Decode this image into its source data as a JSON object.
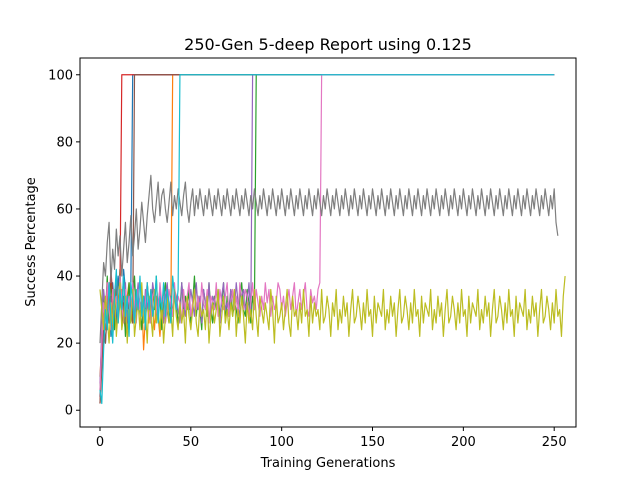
{
  "chart_data": {
    "type": "line",
    "title": "250-Gen 5-deep Report using 0.125",
    "xlabel": "Training Generations",
    "ylabel": "Success Percentage",
    "xlim": [
      -11,
      262
    ],
    "ylim": [
      -5,
      105
    ],
    "xticks": [
      0,
      50,
      100,
      150,
      200,
      250
    ],
    "yticks": [
      0,
      20,
      40,
      60,
      80,
      100
    ],
    "grid": false,
    "legend": "none",
    "series": [
      {
        "color": "#1f77b4",
        "values": [
          4,
          18,
          26,
          20,
          30,
          34,
          22,
          38,
          30,
          26,
          40,
          34,
          28,
          42,
          36,
          30,
          24,
          38,
          100
        ]
      },
      {
        "color": "#ff7f0e",
        "values": [
          10,
          20,
          30,
          24,
          34,
          28,
          36,
          22,
          30,
          40,
          26,
          32,
          36,
          28,
          24,
          34,
          38,
          30,
          26,
          32,
          28,
          36,
          30,
          34,
          18,
          28,
          32,
          26,
          36,
          30,
          24,
          34,
          28,
          22,
          30,
          36,
          26,
          32,
          28,
          30,
          100
        ]
      },
      {
        "color": "#2ca02c",
        "values": [
          6,
          22,
          34,
          28,
          40,
          26,
          38,
          32,
          24,
          36,
          30,
          42,
          28,
          34,
          22,
          30,
          38,
          26,
          32,
          40,
          28,
          36,
          30,
          24,
          34,
          28,
          38,
          32,
          26,
          36,
          30,
          40,
          28,
          34,
          24,
          32,
          38,
          30,
          26,
          34,
          28,
          36,
          32,
          26,
          30,
          38,
          28,
          34,
          30,
          36,
          26,
          32,
          40,
          28,
          34,
          30,
          24,
          36,
          32,
          28,
          38,
          30,
          26,
          34,
          30,
          36,
          28,
          32,
          38,
          26,
          34,
          30,
          36,
          28,
          32,
          30,
          26,
          34,
          38,
          30,
          28,
          36,
          32,
          26,
          34,
          30,
          100
        ]
      },
      {
        "color": "#d62728",
        "values": [
          2,
          16,
          30,
          26,
          38,
          30,
          42,
          34,
          28,
          40,
          32,
          36,
          100
        ]
      },
      {
        "color": "#9467bd",
        "values": [
          8,
          24,
          36,
          30,
          28,
          38,
          32,
          26,
          34,
          40,
          30,
          36,
          28,
          32,
          38,
          26,
          34,
          30,
          36,
          28,
          32,
          38,
          30,
          34,
          26,
          36,
          32,
          28,
          30,
          38,
          34,
          28,
          32,
          36,
          30,
          26,
          34,
          38,
          30,
          32,
          28,
          36,
          34,
          30,
          26,
          38,
          32,
          28,
          34,
          30,
          36,
          32,
          28,
          38,
          30,
          34,
          26,
          36,
          32,
          30,
          38,
          28,
          34,
          32,
          36,
          30,
          26,
          34,
          38,
          30,
          32,
          28,
          36,
          34,
          30,
          38,
          32,
          28,
          34,
          36,
          30,
          32,
          38,
          28,
          100
        ]
      },
      {
        "color": "#8c564b",
        "values": [
          2,
          12,
          24,
          20,
          30,
          26,
          34,
          28,
          32,
          24,
          30,
          36,
          26,
          32,
          28,
          22,
          34,
          30,
          26,
          100
        ]
      },
      {
        "color": "#e377c2",
        "values": [
          6,
          20,
          32,
          26,
          38,
          30,
          24,
          36,
          30,
          34,
          28,
          40,
          32,
          26,
          36,
          30,
          34,
          28,
          38,
          32,
          26,
          36,
          30,
          34,
          28,
          32,
          38,
          30,
          26,
          34,
          36,
          30,
          28,
          38,
          32,
          34,
          26,
          30,
          36,
          32,
          28,
          38,
          30,
          34,
          32,
          26,
          36,
          30,
          34,
          38,
          28,
          32,
          36,
          30,
          34,
          28,
          38,
          32,
          30,
          36,
          26,
          34,
          32,
          30,
          38,
          28,
          36,
          32,
          30,
          34,
          38,
          28,
          32,
          36,
          30,
          34,
          28,
          38,
          32,
          30,
          36,
          34,
          28,
          32,
          38,
          30,
          36,
          32,
          28,
          34,
          30,
          38,
          32,
          36,
          28,
          34,
          30,
          32,
          38,
          36,
          30,
          34,
          28,
          32,
          36,
          30,
          34,
          38,
          28,
          32,
          36,
          30,
          34,
          38,
          30,
          28,
          36,
          32,
          34,
          30,
          36,
          38,
          100
        ]
      },
      {
        "color": "#7f7f7f",
        "values": [
          20,
          32,
          44,
          40,
          50,
          56,
          38,
          48,
          42,
          54,
          46,
          52,
          40,
          48,
          56,
          44,
          50,
          58,
          46,
          52,
          60,
          48,
          54,
          62,
          56,
          50,
          58,
          64,
          70,
          60,
          56,
          62,
          68,
          58,
          64,
          66,
          60,
          56,
          62,
          68,
          58,
          64,
          60,
          66,
          62,
          58,
          64,
          68,
          60,
          56,
          62,
          66,
          58,
          64,
          60,
          66,
          62,
          58,
          64,
          60,
          66,
          62,
          58,
          64,
          60,
          66,
          62,
          58,
          64,
          60,
          66,
          62,
          58,
          64,
          60,
          66,
          62,
          58,
          64,
          60,
          66,
          62,
          58,
          64,
          60,
          66,
          62,
          58,
          64,
          60,
          66,
          62,
          58,
          64,
          60,
          66,
          62,
          58,
          64,
          60,
          66,
          62,
          58,
          64,
          60,
          66,
          62,
          58,
          64,
          60,
          66,
          62,
          58,
          64,
          60,
          66,
          62,
          58,
          64,
          60,
          66,
          62,
          58,
          64,
          60,
          66,
          62,
          58,
          64,
          60,
          66,
          62,
          58,
          64,
          60,
          66,
          62,
          58,
          64,
          60,
          66,
          62,
          58,
          64,
          60,
          66,
          62,
          58,
          64,
          60,
          66,
          62,
          58,
          64,
          60,
          66,
          62,
          58,
          64,
          60,
          66,
          62,
          58,
          64,
          60,
          66,
          62,
          58,
          64,
          60,
          66,
          62,
          58,
          64,
          60,
          66,
          62,
          58,
          64,
          60,
          66,
          62,
          58,
          64,
          60,
          66,
          62,
          58,
          64,
          60,
          66,
          62,
          58,
          64,
          60,
          66,
          62,
          58,
          64,
          60,
          66,
          62,
          58,
          64,
          60,
          66,
          62,
          58,
          64,
          60,
          66,
          62,
          58,
          64,
          60,
          66,
          62,
          58,
          64,
          60,
          66,
          62,
          58,
          64,
          60,
          66,
          62,
          58,
          64,
          60,
          66,
          62,
          58,
          64,
          60,
          66,
          62,
          58,
          64,
          60,
          66,
          62,
          58,
          64,
          60,
          66,
          62,
          58,
          64,
          60,
          66,
          56,
          52
        ]
      },
      {
        "color": "#bcbd22",
        "values": [
          36,
          30,
          24,
          34,
          28,
          20,
          32,
          26,
          36,
          22,
          30,
          38,
          24,
          28,
          34,
          20,
          30,
          26,
          36,
          22,
          28,
          32,
          24,
          38,
          26,
          30,
          20,
          34,
          28,
          22,
          36,
          26,
          30,
          24,
          32,
          20,
          28,
          34,
          26,
          30,
          22,
          36,
          28,
          24,
          32,
          26,
          30,
          20,
          34,
          28,
          24,
          30,
          36,
          26,
          22,
          32,
          28,
          30,
          24,
          34,
          20,
          28,
          32,
          26,
          30,
          36,
          22,
          28,
          34,
          26,
          30,
          24,
          32,
          28,
          36,
          22,
          30,
          26,
          34,
          28,
          20,
          32,
          26,
          30,
          24,
          36,
          28,
          22,
          34,
          30,
          26,
          32,
          28,
          24,
          36,
          30,
          20,
          34,
          26,
          28,
          32,
          24,
          30,
          36,
          26,
          22,
          34,
          28,
          30,
          24,
          32,
          26,
          36,
          28,
          30,
          22,
          34,
          26,
          32,
          28,
          30,
          24,
          36,
          26,
          28,
          34,
          30,
          22,
          32,
          28,
          36,
          24,
          30,
          26,
          34,
          28,
          32,
          22,
          30,
          36,
          26,
          28,
          34,
          30,
          24,
          32,
          26,
          36,
          28,
          30,
          22,
          34,
          26,
          32,
          30,
          28,
          36,
          24,
          30,
          26,
          34,
          28,
          32,
          22,
          30,
          36,
          26,
          28,
          34,
          30,
          24,
          32,
          26,
          36,
          28,
          30,
          22,
          34,
          26,
          32,
          30,
          28,
          36,
          24,
          30,
          26,
          34,
          28,
          32,
          22,
          30,
          36,
          26,
          28,
          34,
          30,
          24,
          32,
          26,
          36,
          28,
          30,
          22,
          34,
          26,
          32,
          30,
          28,
          36,
          24,
          30,
          26,
          34,
          28,
          32,
          22,
          30,
          36,
          26,
          28,
          34,
          30,
          24,
          32,
          26,
          36,
          28,
          30,
          22,
          34,
          26,
          32,
          30,
          28,
          36,
          24,
          30,
          26,
          34,
          28,
          32,
          22,
          30,
          36,
          26,
          28,
          34,
          30,
          24,
          32,
          26,
          36,
          28,
          30,
          22,
          34,
          40
        ]
      },
      {
        "color": "#17becf",
        "values": [
          6,
          2,
          18,
          30,
          24,
          38,
          28,
          20,
          34,
          42,
          26,
          36,
          30,
          40,
          28,
          34,
          22,
          38,
          32,
          26,
          36,
          30,
          40,
          28,
          34,
          24,
          38,
          30,
          36,
          28,
          32,
          40,
          26,
          34,
          30,
          38,
          28,
          36,
          32,
          26,
          40,
          34,
          30,
          36,
          100
        ]
      }
    ]
  }
}
